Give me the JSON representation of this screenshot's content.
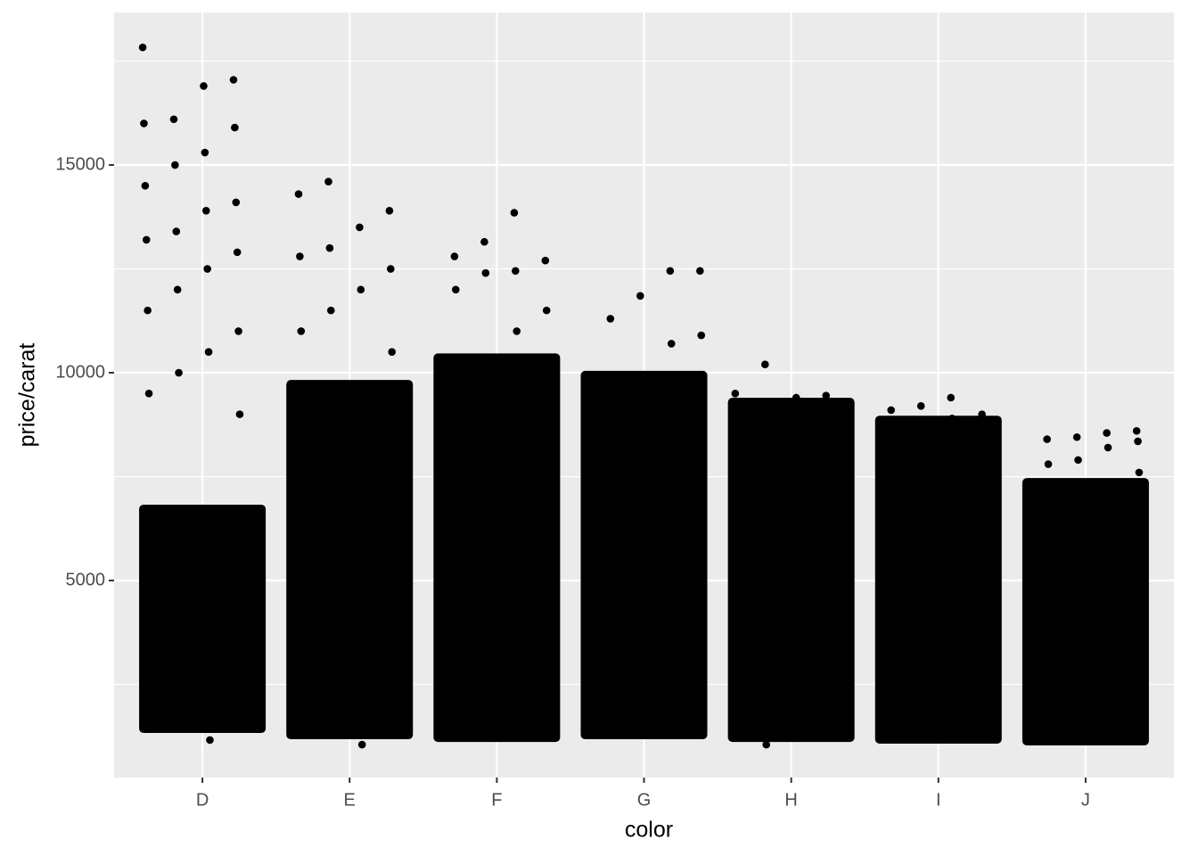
{
  "chart_data": {
    "type": "strip",
    "x_label": "color",
    "y_label": "price/carat",
    "categories": [
      "D",
      "E",
      "F",
      "G",
      "H",
      "I",
      "J"
    ],
    "dense_ranges": [
      [
        1416,
        6740
      ],
      [
        1266,
        9740
      ],
      [
        1200,
        10380
      ],
      [
        1266,
        9960
      ],
      [
        1200,
        9310
      ],
      [
        1160,
        8880
      ],
      [
        1116,
        7380
      ]
    ],
    "points": [
      [
        17830,
        17050,
        16900,
        16100,
        16000,
        15900,
        15300,
        15000,
        14500,
        14100,
        13900,
        13400,
        13200,
        12900,
        12500,
        12000,
        11500,
        11000,
        10500,
        10000,
        9500,
        9000,
        1160
      ],
      [
        14600,
        14300,
        13900,
        13500,
        13000,
        12800,
        12500,
        12000,
        11500,
        11000,
        10500,
        1050
      ],
      [
        13850,
        13150,
        12800,
        12700,
        12450,
        12400,
        12000,
        11500,
        11000
      ],
      [
        12450,
        12450,
        11850,
        11300,
        10900,
        10700
      ],
      [
        10200,
        9500,
        9450,
        9400,
        1050
      ],
      [
        9400,
        9200,
        9100,
        9000,
        8900
      ],
      [
        8600,
        8550,
        8450,
        8400,
        8350,
        8200,
        7900,
        7800,
        7600
      ]
    ],
    "color": "#000000",
    "ylim": [
      258,
      18670
    ],
    "yticks": [
      5000,
      10000,
      15000
    ],
    "minor_yticks": [
      2500,
      7500,
      12500,
      17500
    ],
    "grid": true
  }
}
